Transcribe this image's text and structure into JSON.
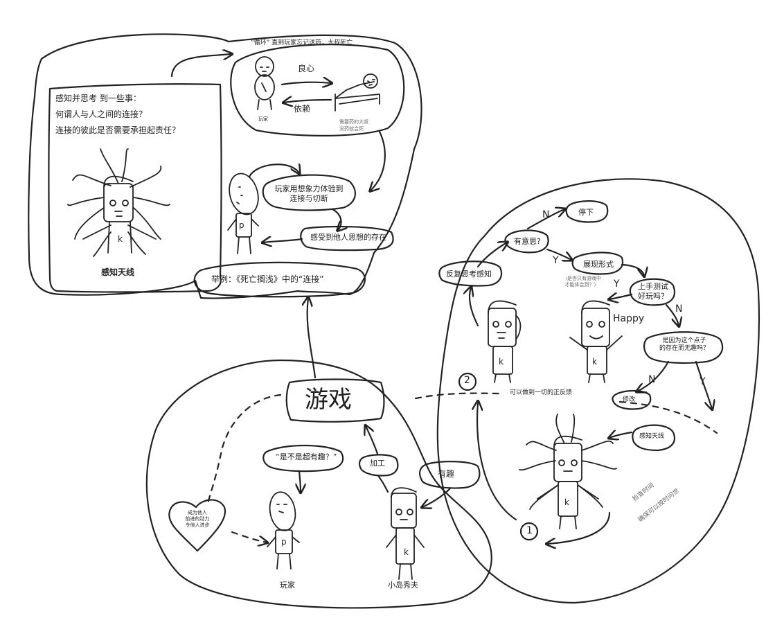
{
  "colors": {
    "ink": "#222222",
    "paper": "#ffffff"
  },
  "top_panel": {
    "loop_title": "“循环” 直到玩家忘记送药，大叔死亡",
    "conscience": "良心",
    "dependence": "依赖",
    "player_caption": "玩家",
    "uncle_caption_1": "需要药的大叔",
    "uncle_caption_2": "没药就会死",
    "imagine_1": "玩家用想象力体验到",
    "imagine_2": "连接与切断",
    "feel_others": "感受到他人思想的存在",
    "example": "举例：《死亡搁浅》中的“连接”"
  },
  "think_card": {
    "line1": "感知并思考 到一些事：",
    "line2": "何谓人与人之间的连接？",
    "line3": "连接的彼此是否需要承担起责任？",
    "antenna_label": "感知天线",
    "letter_k": "k"
  },
  "bottom": {
    "game": "游戏",
    "question": "“是不是超有趣？”",
    "heart_1": "成为他人",
    "heart_2": "前进的动力",
    "heart_3": "令他人进步",
    "player_label": "玩家",
    "kojima_label": "小岛秀夫",
    "process": "加工",
    "fun": "有趣",
    "player_letter": "p"
  },
  "right_loop": {
    "reflect": "反复思考感知",
    "interesting": "有意思?",
    "stop": "停下",
    "N": "N",
    "Y": "Y",
    "show_form": "展现形式",
    "note_1": "（是否只有游戏中",
    "note_2": "才能体会到？）",
    "try_1": "上手测试",
    "try_2": "好玩吗？",
    "happy": "Happy",
    "because_1": "是因为这个点子",
    "because_2": "的存在而无趣吗？",
    "feedback": "可以做到一切的正反馈",
    "modify": "修改",
    "antenna": "感知天线",
    "time_1": "检查时间",
    "time_2": "确保可以按时问世",
    "num_1": "1",
    "num_2": "2",
    "letter_k": "k"
  }
}
